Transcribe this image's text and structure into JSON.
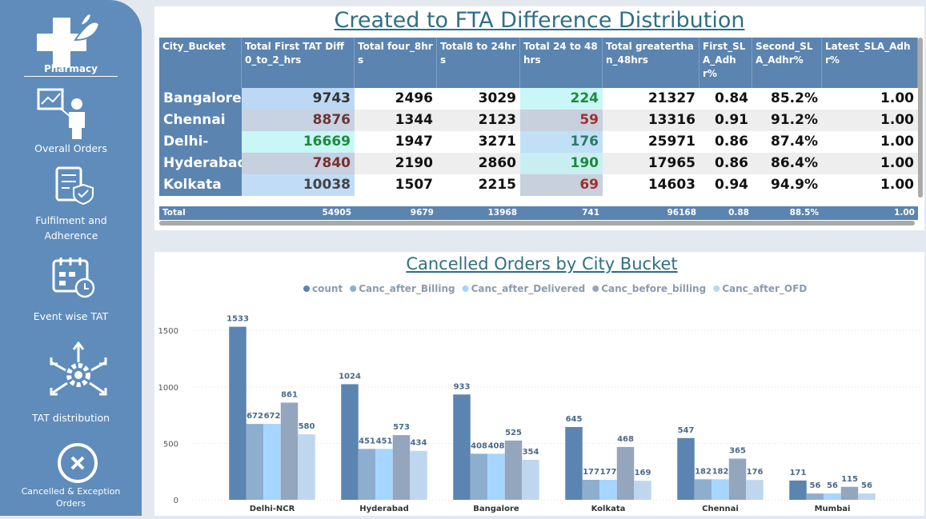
{
  "sidebar": {
    "logo_label": "Pharmacy",
    "items": [
      "Overall Orders",
      "Fulfilment and Adherence",
      "Event wise TAT",
      "TAT  distribution",
      "Cancelled & Exception Orders"
    ]
  },
  "table": {
    "title": "Created to FTA Difference Distribution",
    "columns": [
      "City_Bucket",
      "Total First TAT Diff 0_to_2_hrs",
      "Total four_8hrs",
      "Total8 to 24hrs",
      "Total 24 to 48hrs",
      "Total greaterthan_48hrs",
      "First_SLA_Adhr%",
      "Second_SLA_Adhr%",
      "Latest_SLA_Adhr%"
    ],
    "rows": [
      [
        "Bangalore",
        "9743",
        "2496",
        "3029",
        "224",
        "21327",
        "0.84",
        "85.2%",
        "1.00"
      ],
      [
        "Chennai",
        "8876",
        "1344",
        "2123",
        "59",
        "13316",
        "0.91",
        "91.2%",
        "1.00"
      ],
      [
        "Delhi-NCR",
        "16669",
        "1947",
        "3271",
        "176",
        "25971",
        "0.86",
        "87.4%",
        "1.00"
      ],
      [
        "Hyderabad",
        "7840",
        "2190",
        "2860",
        "190",
        "17965",
        "0.86",
        "86.4%",
        "1.00"
      ],
      [
        "Kolkata",
        "10038",
        "1507",
        "2215",
        "69",
        "14603",
        "0.94",
        "94.9%",
        "1.00"
      ]
    ],
    "total": [
      "Total",
      "54905",
      "9679",
      "13968",
      "741",
      "96168",
      "0.88",
      "88.5%",
      "1.00"
    ]
  },
  "chart_data": {
    "type": "bar",
    "title": "Cancelled Orders by City Bucket",
    "categories": [
      "Delhi-NCR",
      "Hyderabad",
      "Bangalore",
      "Kolkata",
      "Chennai",
      "Mumbai"
    ],
    "series": [
      {
        "name": "count",
        "color": "#5b84b0",
        "values": [
          1533,
          1024,
          933,
          645,
          547,
          171
        ]
      },
      {
        "name": "Canc_after_Billing",
        "color": "#8eaed0",
        "values": [
          672,
          451,
          408,
          177,
          182,
          56
        ]
      },
      {
        "name": "Canc_after_Delivered",
        "color": "#a6d5ff",
        "values": [
          672,
          451,
          408,
          177,
          182,
          56
        ]
      },
      {
        "name": "Canc_before_billing",
        "color": "#94a6bd",
        "values": [
          861,
          573,
          525,
          468,
          365,
          115
        ]
      },
      {
        "name": "Canc_after_OFD",
        "color": "#bfd7ee",
        "values": [
          580,
          434,
          354,
          169,
          176,
          56
        ]
      }
    ],
    "ylim": [
      0,
      1700
    ],
    "yticks": [
      0,
      500,
      1000,
      1500
    ],
    "grid": true
  }
}
